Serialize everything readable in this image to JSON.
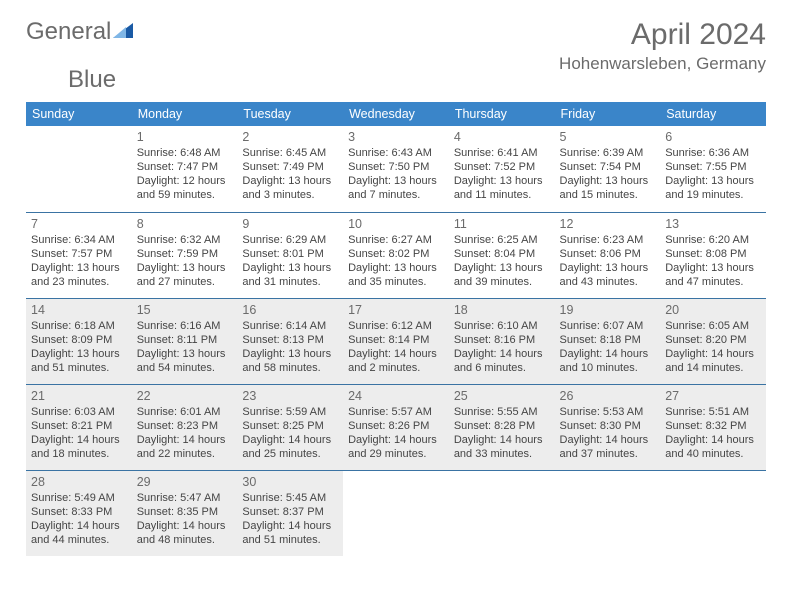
{
  "logo": {
    "text1": "General",
    "text2": "Blue"
  },
  "monthTitle": "April 2024",
  "location": "Hohenwarsleben, Germany",
  "colors": {
    "headerBg": "#3a85c9",
    "headerText": "#ffffff",
    "rowBorder": "#3a73a3",
    "shadedBg": "#ededed",
    "dayNum": "#6b6b6b",
    "bodyText": "#454545",
    "titleText": "#6b6b6b",
    "logoBlue": "#1a5aa5"
  },
  "dayHeaders": [
    "Sunday",
    "Monday",
    "Tuesday",
    "Wednesday",
    "Thursday",
    "Friday",
    "Saturday"
  ],
  "weeks": [
    [
      {
        "n": "",
        "sr": "",
        "ss": "",
        "d1": "",
        "d2": "",
        "sh": false
      },
      {
        "n": "1",
        "sr": "Sunrise: 6:48 AM",
        "ss": "Sunset: 7:47 PM",
        "d1": "Daylight: 12 hours",
        "d2": "and 59 minutes.",
        "sh": false
      },
      {
        "n": "2",
        "sr": "Sunrise: 6:45 AM",
        "ss": "Sunset: 7:49 PM",
        "d1": "Daylight: 13 hours",
        "d2": "and 3 minutes.",
        "sh": false
      },
      {
        "n": "3",
        "sr": "Sunrise: 6:43 AM",
        "ss": "Sunset: 7:50 PM",
        "d1": "Daylight: 13 hours",
        "d2": "and 7 minutes.",
        "sh": false
      },
      {
        "n": "4",
        "sr": "Sunrise: 6:41 AM",
        "ss": "Sunset: 7:52 PM",
        "d1": "Daylight: 13 hours",
        "d2": "and 11 minutes.",
        "sh": false
      },
      {
        "n": "5",
        "sr": "Sunrise: 6:39 AM",
        "ss": "Sunset: 7:54 PM",
        "d1": "Daylight: 13 hours",
        "d2": "and 15 minutes.",
        "sh": false
      },
      {
        "n": "6",
        "sr": "Sunrise: 6:36 AM",
        "ss": "Sunset: 7:55 PM",
        "d1": "Daylight: 13 hours",
        "d2": "and 19 minutes.",
        "sh": false
      }
    ],
    [
      {
        "n": "7",
        "sr": "Sunrise: 6:34 AM",
        "ss": "Sunset: 7:57 PM",
        "d1": "Daylight: 13 hours",
        "d2": "and 23 minutes.",
        "sh": false
      },
      {
        "n": "8",
        "sr": "Sunrise: 6:32 AM",
        "ss": "Sunset: 7:59 PM",
        "d1": "Daylight: 13 hours",
        "d2": "and 27 minutes.",
        "sh": false
      },
      {
        "n": "9",
        "sr": "Sunrise: 6:29 AM",
        "ss": "Sunset: 8:01 PM",
        "d1": "Daylight: 13 hours",
        "d2": "and 31 minutes.",
        "sh": false
      },
      {
        "n": "10",
        "sr": "Sunrise: 6:27 AM",
        "ss": "Sunset: 8:02 PM",
        "d1": "Daylight: 13 hours",
        "d2": "and 35 minutes.",
        "sh": false
      },
      {
        "n": "11",
        "sr": "Sunrise: 6:25 AM",
        "ss": "Sunset: 8:04 PM",
        "d1": "Daylight: 13 hours",
        "d2": "and 39 minutes.",
        "sh": false
      },
      {
        "n": "12",
        "sr": "Sunrise: 6:23 AM",
        "ss": "Sunset: 8:06 PM",
        "d1": "Daylight: 13 hours",
        "d2": "and 43 minutes.",
        "sh": false
      },
      {
        "n": "13",
        "sr": "Sunrise: 6:20 AM",
        "ss": "Sunset: 8:08 PM",
        "d1": "Daylight: 13 hours",
        "d2": "and 47 minutes.",
        "sh": false
      }
    ],
    [
      {
        "n": "14",
        "sr": "Sunrise: 6:18 AM",
        "ss": "Sunset: 8:09 PM",
        "d1": "Daylight: 13 hours",
        "d2": "and 51 minutes.",
        "sh": true
      },
      {
        "n": "15",
        "sr": "Sunrise: 6:16 AM",
        "ss": "Sunset: 8:11 PM",
        "d1": "Daylight: 13 hours",
        "d2": "and 54 minutes.",
        "sh": true
      },
      {
        "n": "16",
        "sr": "Sunrise: 6:14 AM",
        "ss": "Sunset: 8:13 PM",
        "d1": "Daylight: 13 hours",
        "d2": "and 58 minutes.",
        "sh": true
      },
      {
        "n": "17",
        "sr": "Sunrise: 6:12 AM",
        "ss": "Sunset: 8:14 PM",
        "d1": "Daylight: 14 hours",
        "d2": "and 2 minutes.",
        "sh": true
      },
      {
        "n": "18",
        "sr": "Sunrise: 6:10 AM",
        "ss": "Sunset: 8:16 PM",
        "d1": "Daylight: 14 hours",
        "d2": "and 6 minutes.",
        "sh": true
      },
      {
        "n": "19",
        "sr": "Sunrise: 6:07 AM",
        "ss": "Sunset: 8:18 PM",
        "d1": "Daylight: 14 hours",
        "d2": "and 10 minutes.",
        "sh": true
      },
      {
        "n": "20",
        "sr": "Sunrise: 6:05 AM",
        "ss": "Sunset: 8:20 PM",
        "d1": "Daylight: 14 hours",
        "d2": "and 14 minutes.",
        "sh": true
      }
    ],
    [
      {
        "n": "21",
        "sr": "Sunrise: 6:03 AM",
        "ss": "Sunset: 8:21 PM",
        "d1": "Daylight: 14 hours",
        "d2": "and 18 minutes.",
        "sh": true
      },
      {
        "n": "22",
        "sr": "Sunrise: 6:01 AM",
        "ss": "Sunset: 8:23 PM",
        "d1": "Daylight: 14 hours",
        "d2": "and 22 minutes.",
        "sh": true
      },
      {
        "n": "23",
        "sr": "Sunrise: 5:59 AM",
        "ss": "Sunset: 8:25 PM",
        "d1": "Daylight: 14 hours",
        "d2": "and 25 minutes.",
        "sh": true
      },
      {
        "n": "24",
        "sr": "Sunrise: 5:57 AM",
        "ss": "Sunset: 8:26 PM",
        "d1": "Daylight: 14 hours",
        "d2": "and 29 minutes.",
        "sh": true
      },
      {
        "n": "25",
        "sr": "Sunrise: 5:55 AM",
        "ss": "Sunset: 8:28 PM",
        "d1": "Daylight: 14 hours",
        "d2": "and 33 minutes.",
        "sh": true
      },
      {
        "n": "26",
        "sr": "Sunrise: 5:53 AM",
        "ss": "Sunset: 8:30 PM",
        "d1": "Daylight: 14 hours",
        "d2": "and 37 minutes.",
        "sh": true
      },
      {
        "n": "27",
        "sr": "Sunrise: 5:51 AM",
        "ss": "Sunset: 8:32 PM",
        "d1": "Daylight: 14 hours",
        "d2": "and 40 minutes.",
        "sh": true
      }
    ],
    [
      {
        "n": "28",
        "sr": "Sunrise: 5:49 AM",
        "ss": "Sunset: 8:33 PM",
        "d1": "Daylight: 14 hours",
        "d2": "and 44 minutes.",
        "sh": true
      },
      {
        "n": "29",
        "sr": "Sunrise: 5:47 AM",
        "ss": "Sunset: 8:35 PM",
        "d1": "Daylight: 14 hours",
        "d2": "and 48 minutes.",
        "sh": true
      },
      {
        "n": "30",
        "sr": "Sunrise: 5:45 AM",
        "ss": "Sunset: 8:37 PM",
        "d1": "Daylight: 14 hours",
        "d2": "and 51 minutes.",
        "sh": true
      },
      {
        "n": "",
        "sr": "",
        "ss": "",
        "d1": "",
        "d2": "",
        "sh": false
      },
      {
        "n": "",
        "sr": "",
        "ss": "",
        "d1": "",
        "d2": "",
        "sh": false
      },
      {
        "n": "",
        "sr": "",
        "ss": "",
        "d1": "",
        "d2": "",
        "sh": false
      },
      {
        "n": "",
        "sr": "",
        "ss": "",
        "d1": "",
        "d2": "",
        "sh": false
      }
    ]
  ]
}
